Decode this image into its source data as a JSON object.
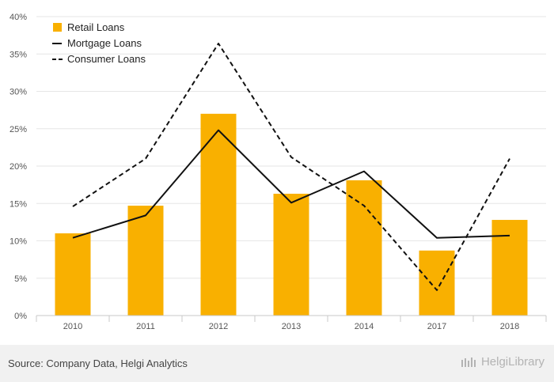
{
  "chart_data": {
    "type": "bar",
    "categories": [
      "2010",
      "2011",
      "2012",
      "2013",
      "2014",
      "2017",
      "2018"
    ],
    "series": [
      {
        "name": "Retail Loans",
        "kind": "bar",
        "values": [
          11.0,
          14.7,
          27.0,
          16.3,
          18.1,
          8.7,
          12.8
        ]
      },
      {
        "name": "Mortgage Loans",
        "kind": "line",
        "style": "solid",
        "values": [
          10.4,
          13.4,
          24.8,
          15.1,
          19.3,
          10.4,
          10.7
        ]
      },
      {
        "name": "Consumer Loans",
        "kind": "line",
        "style": "dashed",
        "values": [
          14.6,
          21.0,
          36.4,
          21.2,
          14.7,
          3.4,
          21.0
        ]
      }
    ],
    "yticks": [
      "0%",
      "5%",
      "10%",
      "15%",
      "20%",
      "25%",
      "30%",
      "35%",
      "40%"
    ],
    "ylim": [
      0,
      40
    ],
    "grid": true,
    "legend_position": "top-left"
  },
  "colors": {
    "bar": "#f9b000",
    "line": "#111111",
    "grid": "#e6e6e6",
    "axis": "#c8c8c8"
  },
  "footer": {
    "source": "Source: Company Data, Helgi Analytics",
    "brand": "HelgiLibrary"
  }
}
